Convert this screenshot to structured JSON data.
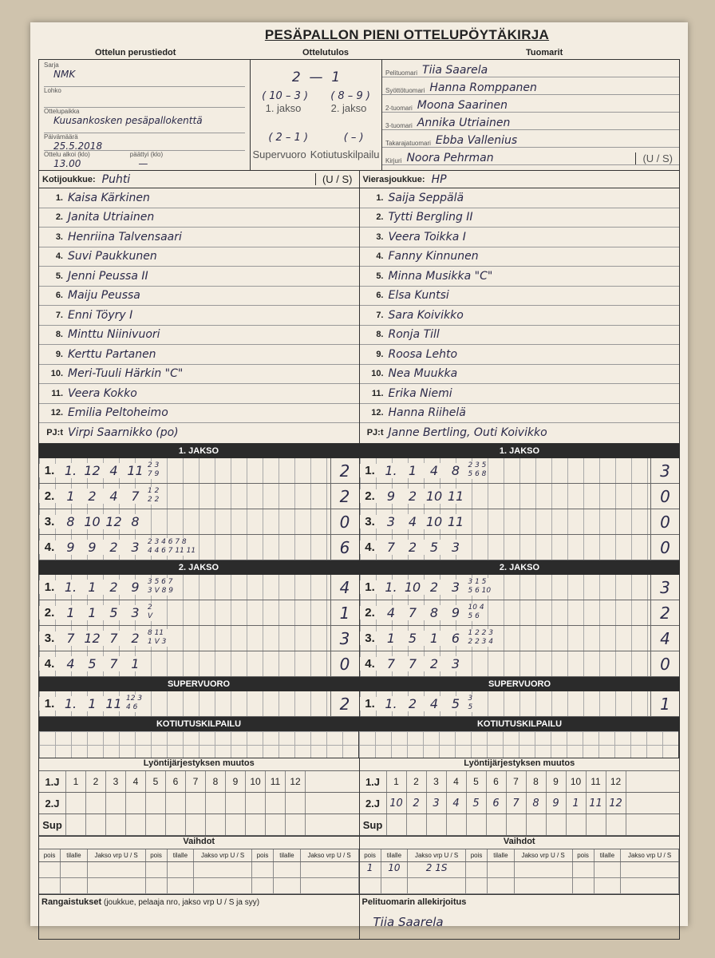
{
  "title": "PESÄPALLON PIENI OTTELUPÖYTÄKIRJA",
  "basic": {
    "heading": "Ottelun perustiedot",
    "sarja_label": "Sarja",
    "sarja": "NMK",
    "lohko_label": "Lohko",
    "paikka_label": "Ottelupaikka",
    "paikka": "Kuusankosken pesäpallokenttä",
    "pvm_label": "Päivämäärä",
    "pvm": "25.5.2018",
    "alkoi_label": "Ottelu alkoi (klo)",
    "alkoi": "13.00",
    "paattyi_label": "päättyi (klo)",
    "paattyi": "—"
  },
  "result": {
    "heading": "Ottelutulos",
    "home": "2",
    "away": "1",
    "j1": "( 10 – 3 )",
    "j2": "( 8 – 9 )",
    "j1_label": "1. jakso",
    "j2_label": "2. jakso",
    "sv": "( 2 – 1 )",
    "kk": "(  –  )",
    "sv_label": "Supervuoro",
    "kk_label": "Kotiutuskilpailu"
  },
  "referees": {
    "heading": "Tuomarit",
    "rows": [
      {
        "role": "Pelituomari",
        "name": "Tiia Saarela"
      },
      {
        "role": "Syöttötuomari",
        "name": "Hanna Romppanen"
      },
      {
        "role": "2-tuomari",
        "name": "Moona Saarinen"
      },
      {
        "role": "3-tuomari",
        "name": "Annika Utriainen"
      },
      {
        "role": "Takarajatuomari",
        "name": "Ebba Vallenius"
      },
      {
        "role": "Kirjuri",
        "name": "Noora Pehrman"
      }
    ]
  },
  "us_label": "(U / S)",
  "home": {
    "label": "Kotijoukkue:",
    "name": "Puhti",
    "players": [
      "Kaisa Kärkinen",
      "Janita Utriainen",
      "Henriina Talvensaari",
      "Suvi Paukkunen",
      "Jenni Peussa II",
      "Maiju Peussa",
      "Enni Töyry I",
      "Minttu Niinivuori",
      "Kerttu Partanen",
      "Meri-Tuuli Härkin \"C\"",
      "Veera Kokko",
      "Emilia Peltoheimo"
    ],
    "pj_label": "PJ:t",
    "pj": "Virpi Saarnikko (po)"
  },
  "away": {
    "label": "Vierasjoukkue:",
    "name": "HP",
    "players": [
      "Saija Seppälä",
      "Tytti Bergling II",
      "Veera Toikka I",
      "Fanny Kinnunen",
      "Minna Musikka \"C\"",
      "Elsa Kuntsi",
      "Sara Koivikko",
      "Ronja Till",
      "Roosa Lehto",
      "Nea Muukka",
      "Erika Niemi",
      "Hanna Riihelä"
    ],
    "pj_label": "PJ:t",
    "pj": "Janne Bertling, Outi Koivikko"
  },
  "innings": [
    {
      "title": "1. JAKSO",
      "home": [
        {
          "lab": "1.",
          "e": [
            "1.",
            "12",
            "4",
            "11"
          ],
          "nt": "2 3\n7 9",
          "r": "2"
        },
        {
          "lab": "2.",
          "e": [
            "1",
            "2",
            "4",
            "7"
          ],
          "nt": "1 2\n2 2",
          "r": "2"
        },
        {
          "lab": "3.",
          "e": [
            "8",
            "10",
            "12",
            "8"
          ],
          "nt": "",
          "r": "0"
        },
        {
          "lab": "4.",
          "e": [
            "9",
            "9",
            "2",
            "3"
          ],
          "nt": "2 3 4 6 7 8\n4 4 6 7 11 11",
          "r": "6"
        }
      ],
      "away": [
        {
          "lab": "1.",
          "e": [
            "1.",
            "1",
            "4",
            "8"
          ],
          "nt": "2 3 5\n5 6 8",
          "r": "3"
        },
        {
          "lab": "2.",
          "e": [
            "9",
            "2",
            "10",
            "11"
          ],
          "nt": "",
          "r": "0"
        },
        {
          "lab": "3.",
          "e": [
            "3",
            "4",
            "10",
            "11"
          ],
          "nt": "",
          "r": "0"
        },
        {
          "lab": "4.",
          "e": [
            "7",
            "2",
            "5",
            "3"
          ],
          "nt": "",
          "r": "0"
        }
      ]
    },
    {
      "title": "2. JAKSO",
      "home": [
        {
          "lab": "1.",
          "e": [
            "1.",
            "1",
            "2",
            "9"
          ],
          "nt": "3 5 6 7\n3 V 8 9",
          "r": "4"
        },
        {
          "lab": "2.",
          "e": [
            "1",
            "1",
            "5",
            "3"
          ],
          "nt": "2\nV",
          "r": "1"
        },
        {
          "lab": "3.",
          "e": [
            "7",
            "12",
            "7",
            "2"
          ],
          "nt": "8 11\n1 V 3",
          "r": "3"
        },
        {
          "lab": "4.",
          "e": [
            "4",
            "5",
            "7",
            "1"
          ],
          "nt": "",
          "r": "0"
        }
      ],
      "away": [
        {
          "lab": "1.",
          "e": [
            "1.",
            "10",
            "2",
            "3"
          ],
          "nt": "3 1 5\n5 6 10",
          "r": "3"
        },
        {
          "lab": "2.",
          "e": [
            "4",
            "7",
            "8",
            "9"
          ],
          "nt": "10 4\n5 6",
          "r": "2"
        },
        {
          "lab": "3.",
          "e": [
            "1",
            "5",
            "1",
            "6"
          ],
          "nt": "1 2 2 3\n2 2 3 4",
          "r": "4"
        },
        {
          "lab": "4.",
          "e": [
            "7",
            "7",
            "2",
            "3"
          ],
          "nt": "",
          "r": "0"
        }
      ]
    },
    {
      "title": "SUPERVUORO",
      "home": [
        {
          "lab": "1.",
          "e": [
            "1.",
            "1",
            "11"
          ],
          "nt": "12 3\n4 6",
          "r": "2"
        }
      ],
      "away": [
        {
          "lab": "1.",
          "e": [
            "1.",
            "2",
            "4",
            "5"
          ],
          "nt": "3\n5",
          "r": "1"
        }
      ]
    }
  ],
  "kotiutus": "KOTIUTUSKILPAILU",
  "lineup": {
    "title": "Lyöntijärjestyksen muutos",
    "rows": [
      "1.J",
      "2.J",
      "Sup"
    ],
    "numbers": [
      "1",
      "2",
      "3",
      "4",
      "5",
      "6",
      "7",
      "8",
      "9",
      "10",
      "11",
      "12"
    ],
    "away_2j": [
      "10",
      "2",
      "3",
      "4",
      "5",
      "6",
      "7",
      "8",
      "9",
      "1",
      "11",
      "12"
    ]
  },
  "subs": {
    "title": "Vaihdot",
    "cols": [
      "pois",
      "tilalle",
      "Jakso vrp U / S"
    ],
    "away_entry": [
      "1",
      "10",
      "2 1S"
    ]
  },
  "penalties": {
    "label": "Rangaistukset",
    "hint": "(joukkue, pelaaja nro, jakso vrp U / S ja syy)"
  },
  "signature": {
    "label": "Pelituomarin allekirjoitus",
    "text": "Tiia Saarela"
  }
}
